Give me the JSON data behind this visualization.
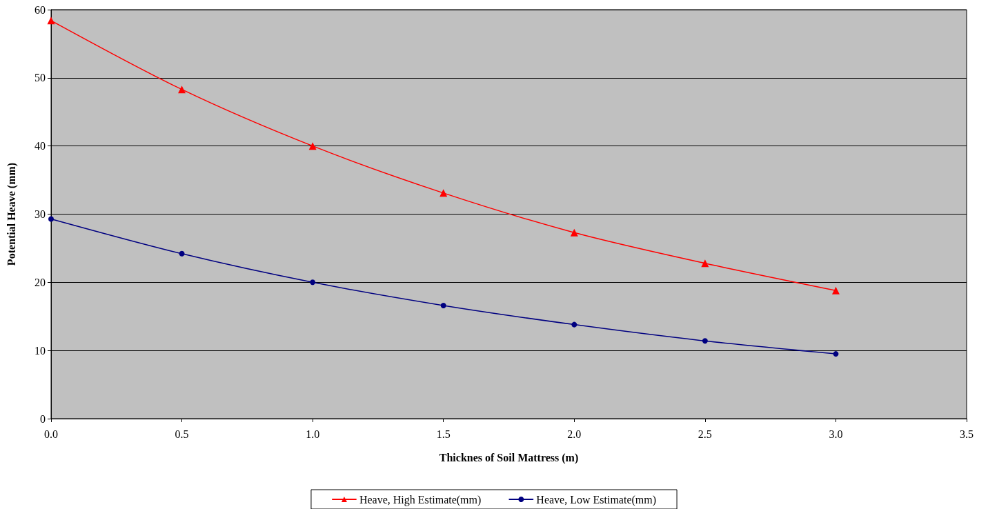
{
  "chart_data": {
    "type": "line",
    "xlabel": "Thicknes of Soil Mattress (m)",
    "ylabel": "Potential Heave (mm)",
    "x": [
      0,
      0.5,
      1,
      1.5,
      2,
      2.5,
      3
    ],
    "series": [
      {
        "name": "Heave, High Estimate(mm)",
        "color": "#ff0000",
        "marker": "triangle",
        "values": [
          58.4,
          48.3,
          40.0,
          33.1,
          27.3,
          22.8,
          18.8
        ]
      },
      {
        "name": "Heave, Low Estimate(mm)",
        "color": "#000080",
        "marker": "circle",
        "values": [
          29.3,
          24.2,
          20.0,
          16.6,
          13.8,
          11.4,
          9.5
        ]
      }
    ],
    "xlim": [
      0,
      3.5
    ],
    "xticks": [
      {
        "value": 0,
        "label": "0.0"
      },
      {
        "value": 0.5,
        "label": "0.5"
      },
      {
        "value": 1,
        "label": "1.0"
      },
      {
        "value": 1.5,
        "label": "1.5"
      },
      {
        "value": 2,
        "label": "2.0"
      },
      {
        "value": 2.5,
        "label": "2.5"
      },
      {
        "value": 3,
        "label": "3.0"
      },
      {
        "value": 3.5,
        "label": "3.5"
      }
    ],
    "ylim": [
      0,
      60
    ],
    "yticks": [
      0,
      10,
      20,
      30,
      40,
      50,
      60
    ],
    "grid": "y",
    "legend": "bottom",
    "line_style": "solid"
  }
}
